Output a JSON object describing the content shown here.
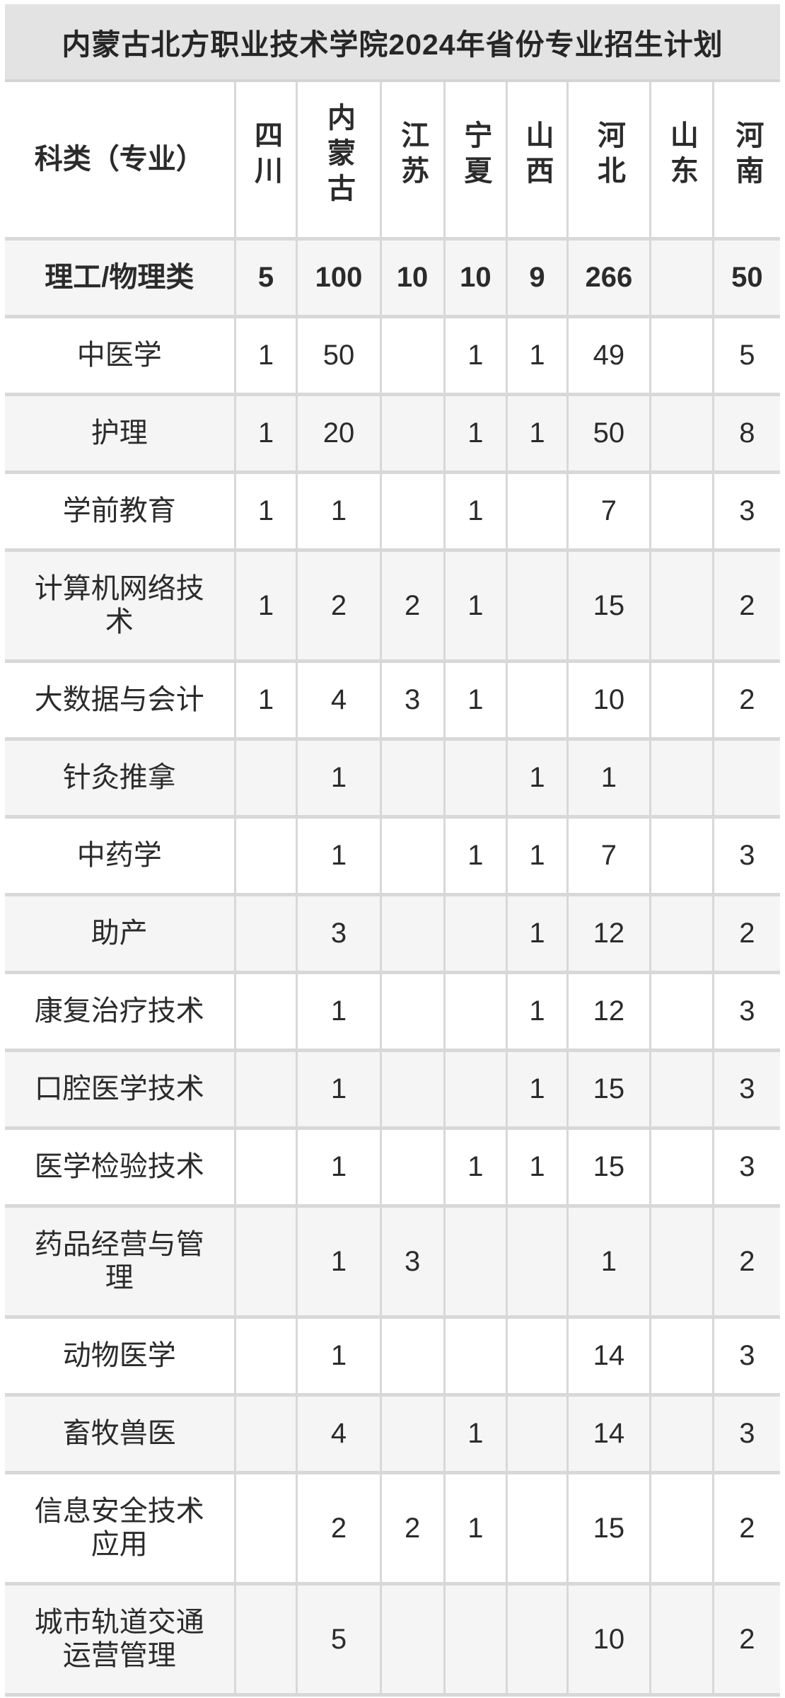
{
  "title": "内蒙古北方职业技术学院2024年省份专业招生计划",
  "colors": {
    "title_bar_bg": "#e3e3e3",
    "grid_line": "#d8d8d8",
    "row_alt_bg": "#f5f5f5",
    "row_bg": "#ffffff",
    "text": "#2b2b2b"
  },
  "chart_data": {
    "type": "table",
    "title": "内蒙古北方职业技术学院2024年省份专业招生计划",
    "corner_header": "科类（专业）",
    "columns": [
      "四川",
      "内蒙古",
      "江苏",
      "宁夏",
      "山西",
      "河北",
      "山东",
      "河南"
    ],
    "rows": [
      {
        "label": "理工/物理类",
        "bold": true,
        "values": [
          "5",
          "100",
          "10",
          "10",
          "9",
          "266",
          "",
          "50"
        ]
      },
      {
        "label": "中医学",
        "bold": false,
        "values": [
          "1",
          "50",
          "",
          "1",
          "1",
          "49",
          "",
          "5"
        ]
      },
      {
        "label": "护理",
        "bold": false,
        "values": [
          "1",
          "20",
          "",
          "1",
          "1",
          "50",
          "",
          "8"
        ]
      },
      {
        "label": "学前教育",
        "bold": false,
        "values": [
          "1",
          "1",
          "",
          "1",
          "",
          "7",
          "",
          "3"
        ]
      },
      {
        "label": "计算机网络技术",
        "bold": false,
        "values": [
          "1",
          "2",
          "2",
          "1",
          "",
          "15",
          "",
          "2"
        ]
      },
      {
        "label": "大数据与会计",
        "bold": false,
        "values": [
          "1",
          "4",
          "3",
          "1",
          "",
          "10",
          "",
          "2"
        ]
      },
      {
        "label": "针灸推拿",
        "bold": false,
        "values": [
          "",
          "1",
          "",
          "",
          "1",
          "1",
          "",
          ""
        ]
      },
      {
        "label": "中药学",
        "bold": false,
        "values": [
          "",
          "1",
          "",
          "1",
          "1",
          "7",
          "",
          "3"
        ]
      },
      {
        "label": "助产",
        "bold": false,
        "values": [
          "",
          "3",
          "",
          "",
          "1",
          "12",
          "",
          "2"
        ]
      },
      {
        "label": "康复治疗技术",
        "bold": false,
        "values": [
          "",
          "1",
          "",
          "",
          "1",
          "12",
          "",
          "3"
        ]
      },
      {
        "label": "口腔医学技术",
        "bold": false,
        "values": [
          "",
          "1",
          "",
          "",
          "1",
          "15",
          "",
          "3"
        ]
      },
      {
        "label": "医学检验技术",
        "bold": false,
        "values": [
          "",
          "1",
          "",
          "1",
          "1",
          "15",
          "",
          "3"
        ]
      },
      {
        "label": "药品经营与管理",
        "bold": false,
        "values": [
          "",
          "1",
          "3",
          "",
          "",
          "1",
          "",
          "2"
        ]
      },
      {
        "label": "动物医学",
        "bold": false,
        "values": [
          "",
          "1",
          "",
          "",
          "",
          "14",
          "",
          "3"
        ]
      },
      {
        "label": "畜牧兽医",
        "bold": false,
        "values": [
          "",
          "4",
          "",
          "1",
          "",
          "14",
          "",
          "3"
        ]
      },
      {
        "label": "信息安全技术应用",
        "bold": false,
        "values": [
          "",
          "2",
          "2",
          "1",
          "",
          "15",
          "",
          "2"
        ]
      },
      {
        "label": "城市轨道交通运营管理",
        "bold": false,
        "values": [
          "",
          "5",
          "",
          "",
          "",
          "10",
          "",
          "2"
        ]
      }
    ]
  }
}
